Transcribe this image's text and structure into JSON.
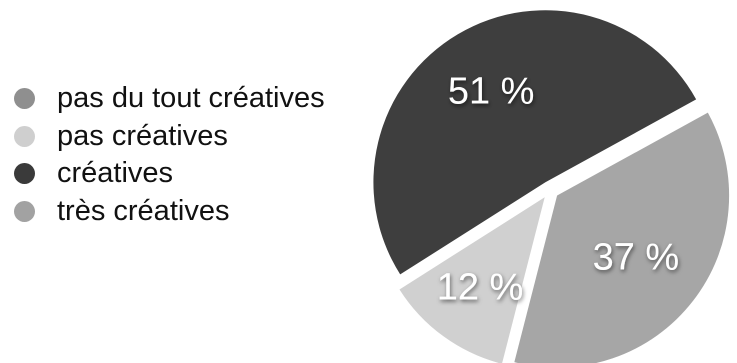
{
  "chart_data": {
    "type": "pie",
    "legend_position": "left",
    "legend": [
      {
        "label": "pas du tout créatives",
        "color": "#8f8f8f"
      },
      {
        "label": "pas créatives",
        "color": "#cfcfcf"
      },
      {
        "label": "créatives",
        "color": "#3a3a3a"
      },
      {
        "label": "très créatives",
        "color": "#a2a2a2"
      }
    ],
    "slices": [
      {
        "label": "créatives",
        "value": 51,
        "value_label": "51 %",
        "color": "#3e3e3e"
      },
      {
        "label": "très créatives",
        "value": 37,
        "value_label": "37 %",
        "color": "#a6a6a6"
      },
      {
        "label": "pas créatives",
        "value": 12,
        "value_label": "12 %",
        "color": "#d0d0d0"
      }
    ]
  }
}
